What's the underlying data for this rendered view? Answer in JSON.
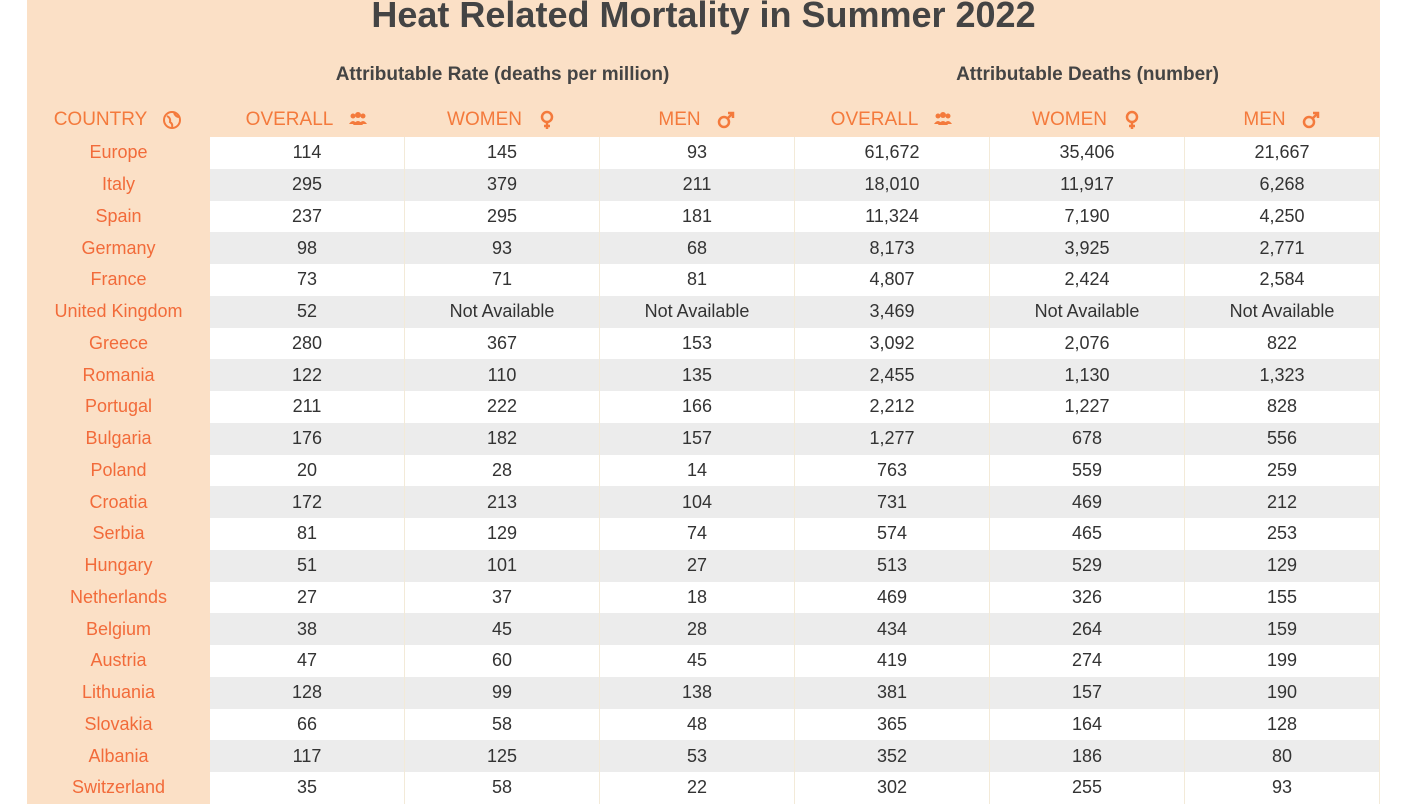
{
  "header": {
    "title": "Heat Related Mortality in Summer 2022"
  },
  "table": {
    "groups": [
      "Attributable Rate (deaths per million)",
      "Attributable Deaths (number)"
    ],
    "columns": [
      "COUNTRY",
      "OVERALL",
      "WOMEN",
      "MEN",
      "OVERALL",
      "WOMEN",
      "MEN"
    ],
    "rows": [
      [
        "Europe",
        "114",
        "145",
        "93",
        "61,672",
        "35,406",
        "21,667"
      ],
      [
        "Italy",
        "295",
        "379",
        "211",
        "18,010",
        "11,917",
        "6,268"
      ],
      [
        "Spain",
        "237",
        "295",
        "181",
        "11,324",
        "7,190",
        "4,250"
      ],
      [
        "Germany",
        "98",
        "93",
        "68",
        "8,173",
        "3,925",
        "2,771"
      ],
      [
        "France",
        "73",
        "71",
        "81",
        "4,807",
        "2,424",
        "2,584"
      ],
      [
        "United Kingdom",
        "52",
        "Not Available",
        "Not Available",
        "3,469",
        "Not Available",
        "Not Available"
      ],
      [
        "Greece",
        "280",
        "367",
        "153",
        "3,092",
        "2,076",
        "822"
      ],
      [
        "Romania",
        "122",
        "110",
        "135",
        "2,455",
        "1,130",
        "1,323"
      ],
      [
        "Portugal",
        "211",
        "222",
        "166",
        "2,212",
        "1,227",
        "828"
      ],
      [
        "Bulgaria",
        "176",
        "182",
        "157",
        "1,277",
        "678",
        "556"
      ],
      [
        "Poland",
        "20",
        "28",
        "14",
        "763",
        "559",
        "259"
      ],
      [
        "Croatia",
        "172",
        "213",
        "104",
        "731",
        "469",
        "212"
      ],
      [
        "Serbia",
        "81",
        "129",
        "74",
        "574",
        "465",
        "253"
      ],
      [
        "Hungary",
        "51",
        "101",
        "27",
        "513",
        "529",
        "129"
      ],
      [
        "Netherlands",
        "27",
        "37",
        "18",
        "469",
        "326",
        "155"
      ],
      [
        "Belgium",
        "38",
        "45",
        "28",
        "434",
        "264",
        "159"
      ],
      [
        "Austria",
        "47",
        "60",
        "45",
        "419",
        "274",
        "199"
      ],
      [
        "Lithuania",
        "128",
        "99",
        "138",
        "381",
        "157",
        "190"
      ],
      [
        "Slovakia",
        "66",
        "58",
        "48",
        "365",
        "164",
        "128"
      ],
      [
        "Albania",
        "117",
        "125",
        "53",
        "352",
        "186",
        "80"
      ],
      [
        "Switzerland",
        "35",
        "58",
        "22",
        "302",
        "255",
        "93"
      ]
    ]
  }
}
